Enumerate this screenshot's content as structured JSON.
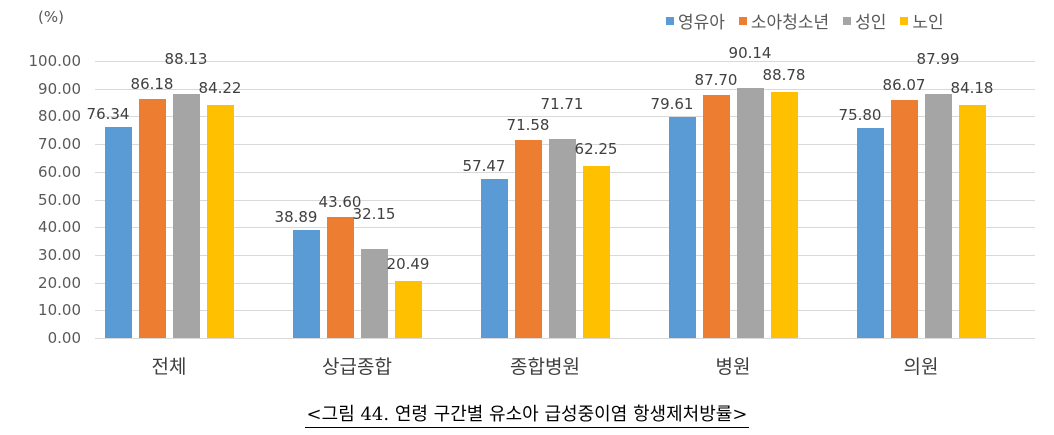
{
  "chart_data": {
    "type": "bar",
    "title": "",
    "ylabel": "(%)",
    "xlabel": "",
    "ylim": [
      0,
      100
    ],
    "yticks": [
      "0.00",
      "10.00",
      "20.00",
      "30.00",
      "40.00",
      "50.00",
      "60.00",
      "70.00",
      "80.00",
      "90.00",
      "100.00"
    ],
    "grid": true,
    "legend_position": "top-right",
    "categories": [
      "전체",
      "상급종합",
      "종합병원",
      "병원",
      "의원"
    ],
    "series": [
      {
        "name": "영유아",
        "color": "#5B9BD5",
        "values": [
          76.34,
          38.89,
          57.47,
          79.61,
          75.8
        ],
        "labels": [
          "76.34",
          "38.89",
          "57.47",
          "79.61",
          "75.80"
        ]
      },
      {
        "name": "소아청소년",
        "color": "#ED7D31",
        "values": [
          86.18,
          43.6,
          71.58,
          87.7,
          86.07
        ],
        "labels": [
          "86.18",
          "43.60",
          "71.58",
          "87.70",
          "86.07"
        ]
      },
      {
        "name": "성인",
        "color": "#A5A5A5",
        "values": [
          88.13,
          32.15,
          71.71,
          90.14,
          87.99
        ],
        "labels": [
          "88.13",
          "32.15",
          "71.71",
          "90.14",
          "87.99"
        ]
      },
      {
        "name": "노인",
        "color": "#FFC000",
        "values": [
          84.22,
          20.49,
          62.25,
          88.78,
          84.18
        ],
        "labels": [
          "84.22",
          "20.49",
          "62.25",
          "88.78",
          "84.18"
        ]
      }
    ]
  },
  "caption": "<그림 44. 연령 구간별 유소아 급성중이염 항생제처방률>",
  "unit_label": "(%)"
}
